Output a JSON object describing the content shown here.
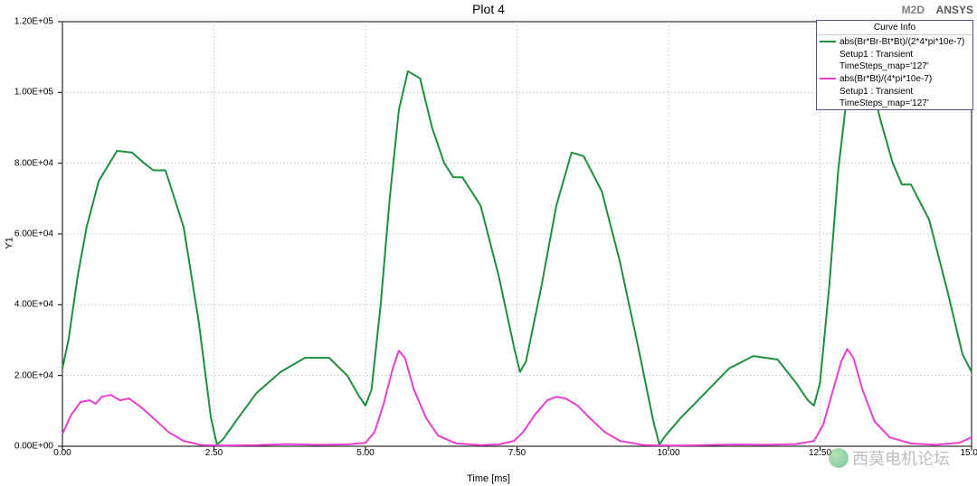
{
  "header": {
    "title": "Plot 4",
    "m2d": "M2D",
    "ansys": "ANSYS"
  },
  "axes": {
    "xlabel": "Time [ms]",
    "ylabel": "Y1"
  },
  "chart": {
    "type": "line",
    "xlim": [
      0,
      15
    ],
    "ylim": [
      0,
      120000
    ],
    "xtick_step": 2.5,
    "ytick_step": 20000,
    "xtick_labels": [
      "0.00",
      "2.50",
      "5.00",
      "7.50",
      "10.00",
      "12.50",
      "15.00"
    ],
    "ytick_labels": [
      "0.00E+00",
      "2.00E+04",
      "4.00E+04",
      "6.00E+04",
      "8.00E+04",
      "1.00E+05",
      "1.20E+05"
    ],
    "background_color": "#ffffff",
    "grid_color": "#d0d0d0",
    "axis_color": "#000000",
    "line_width": 2,
    "series": [
      {
        "name": "abs(Br*Br-Bt*Bt)/(2*4*pi*10e-7)",
        "sub1": "Setup1 : Transient",
        "sub2": "TimeSteps_map='127'",
        "color": "#1f8f3f",
        "data": [
          [
            0.0,
            22000
          ],
          [
            0.1,
            30000
          ],
          [
            0.25,
            48000
          ],
          [
            0.4,
            62000
          ],
          [
            0.6,
            75000
          ],
          [
            0.9,
            83500
          ],
          [
            1.15,
            83000
          ],
          [
            1.35,
            80000
          ],
          [
            1.5,
            78000
          ],
          [
            1.7,
            78000
          ],
          [
            2.0,
            62000
          ],
          [
            2.25,
            35000
          ],
          [
            2.45,
            8000
          ],
          [
            2.55,
            500
          ],
          [
            2.65,
            2000
          ],
          [
            2.9,
            8000
          ],
          [
            3.2,
            15000
          ],
          [
            3.6,
            21000
          ],
          [
            4.0,
            25000
          ],
          [
            4.4,
            25000
          ],
          [
            4.7,
            20000
          ],
          [
            4.9,
            14000
          ],
          [
            5.0,
            11500
          ],
          [
            5.1,
            16000
          ],
          [
            5.25,
            40000
          ],
          [
            5.4,
            70000
          ],
          [
            5.55,
            95000
          ],
          [
            5.7,
            106000
          ],
          [
            5.9,
            104000
          ],
          [
            6.1,
            90000
          ],
          [
            6.3,
            80000
          ],
          [
            6.45,
            76000
          ],
          [
            6.6,
            76000
          ],
          [
            6.9,
            68000
          ],
          [
            7.2,
            48000
          ],
          [
            7.45,
            28000
          ],
          [
            7.55,
            21000
          ],
          [
            7.65,
            24000
          ],
          [
            7.9,
            45000
          ],
          [
            8.15,
            68000
          ],
          [
            8.4,
            83000
          ],
          [
            8.6,
            82000
          ],
          [
            8.9,
            72000
          ],
          [
            9.2,
            52000
          ],
          [
            9.5,
            28000
          ],
          [
            9.75,
            7000
          ],
          [
            9.85,
            500
          ],
          [
            9.95,
            3000
          ],
          [
            10.2,
            8000
          ],
          [
            10.6,
            15000
          ],
          [
            11.0,
            22000
          ],
          [
            11.4,
            25500
          ],
          [
            11.8,
            24500
          ],
          [
            12.1,
            18000
          ],
          [
            12.3,
            13000
          ],
          [
            12.4,
            11500
          ],
          [
            12.5,
            18000
          ],
          [
            12.65,
            45000
          ],
          [
            12.8,
            78000
          ],
          [
            12.95,
            100000
          ],
          [
            13.1,
            109000
          ],
          [
            13.3,
            106000
          ],
          [
            13.5,
            92000
          ],
          [
            13.7,
            80000
          ],
          [
            13.85,
            74000
          ],
          [
            14.0,
            74000
          ],
          [
            14.3,
            64000
          ],
          [
            14.6,
            44000
          ],
          [
            14.85,
            26000
          ],
          [
            15.0,
            21000
          ]
        ]
      },
      {
        "name": "abs(Br*Bt)/(4*pi*10e-7)",
        "sub1": "Setup1 : Transient",
        "sub2": "TimeSteps_map='127'",
        "color": "#e83fcf",
        "data": [
          [
            0.0,
            3500
          ],
          [
            0.15,
            9000
          ],
          [
            0.3,
            12500
          ],
          [
            0.45,
            13000
          ],
          [
            0.55,
            12000
          ],
          [
            0.65,
            14000
          ],
          [
            0.8,
            14500
          ],
          [
            0.95,
            13000
          ],
          [
            1.1,
            13500
          ],
          [
            1.3,
            11000
          ],
          [
            1.5,
            8000
          ],
          [
            1.75,
            4000
          ],
          [
            2.0,
            1500
          ],
          [
            2.3,
            300
          ],
          [
            2.7,
            200
          ],
          [
            3.2,
            300
          ],
          [
            3.7,
            600
          ],
          [
            4.2,
            400
          ],
          [
            4.7,
            500
          ],
          [
            5.0,
            1000
          ],
          [
            5.15,
            4000
          ],
          [
            5.3,
            12000
          ],
          [
            5.45,
            22000
          ],
          [
            5.55,
            27000
          ],
          [
            5.65,
            25000
          ],
          [
            5.8,
            16000
          ],
          [
            6.0,
            8000
          ],
          [
            6.2,
            3000
          ],
          [
            6.5,
            800
          ],
          [
            6.9,
            300
          ],
          [
            7.2,
            500
          ],
          [
            7.45,
            1500
          ],
          [
            7.6,
            4000
          ],
          [
            7.8,
            9000
          ],
          [
            8.0,
            13000
          ],
          [
            8.15,
            14000
          ],
          [
            8.3,
            13500
          ],
          [
            8.5,
            11500
          ],
          [
            8.7,
            8000
          ],
          [
            8.95,
            4000
          ],
          [
            9.2,
            1500
          ],
          [
            9.6,
            300
          ],
          [
            10.1,
            200
          ],
          [
            10.6,
            300
          ],
          [
            11.1,
            500
          ],
          [
            11.6,
            400
          ],
          [
            12.1,
            600
          ],
          [
            12.4,
            1500
          ],
          [
            12.55,
            6000
          ],
          [
            12.7,
            15000
          ],
          [
            12.85,
            24000
          ],
          [
            12.95,
            27500
          ],
          [
            13.05,
            25000
          ],
          [
            13.2,
            16000
          ],
          [
            13.4,
            7000
          ],
          [
            13.65,
            2500
          ],
          [
            14.0,
            800
          ],
          [
            14.4,
            400
          ],
          [
            14.8,
            1000
          ],
          [
            15.0,
            2500
          ]
        ]
      }
    ]
  },
  "legend": {
    "title": "Curve Info"
  },
  "watermark": {
    "text": "西莫电机论坛"
  }
}
